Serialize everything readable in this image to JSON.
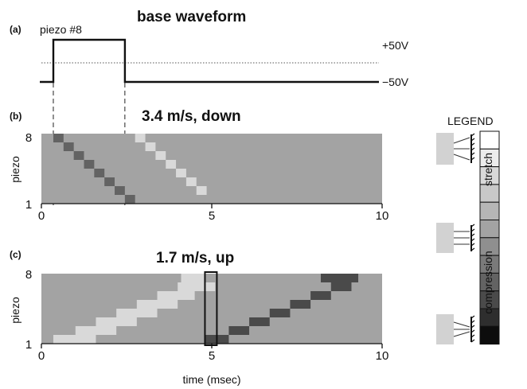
{
  "panel_a": {
    "letter": "(a)",
    "title": "base waveform",
    "signal_label": "piezo #8",
    "high_label": "+50V",
    "low_label": "−50V",
    "pulse_ms": [
      0.35,
      2.45
    ]
  },
  "panel_b": {
    "letter": "(b)",
    "title": "3.4 m/s, down",
    "ylabel": "piezo"
  },
  "panel_c": {
    "letter": "(c)",
    "title": "1.7 m/s, up",
    "ylabel": "piezo",
    "xlabel": "time (msec)"
  },
  "legend": {
    "title": "LEGEND",
    "top_label": "stretch",
    "bottom_label": "compression",
    "levels": [
      "#ffffff",
      "#ececec",
      "#d9d9d9",
      "#c8c8c8",
      "#b6b6b6",
      "#a3a3a3",
      "#8f8f8f",
      "#7a7a7a",
      "#636363",
      "#4a4a4a",
      "#2e2e2e",
      "#0d0d0d"
    ]
  },
  "chart_data": [
    {
      "type": "line",
      "title": "base waveform",
      "series": [
        {
          "name": "piezo #8",
          "x": [
            -0.1,
            0.35,
            0.35,
            2.45,
            2.45,
            10
          ],
          "y": [
            -50,
            -50,
            50,
            50,
            -50,
            -50
          ]
        }
      ],
      "yticks": [
        "+50V",
        "−50V"
      ]
    },
    {
      "type": "heatmap",
      "title": "3.4 m/s, down",
      "ylabel": "piezo",
      "xlim": [
        0,
        10
      ],
      "xticks": [
        "0",
        "5",
        "10"
      ],
      "yticks": [
        "8",
        "1"
      ],
      "background": "#a3a3a3",
      "cells": [
        {
          "piezo": 8,
          "x0": 0.35,
          "x1": 0.65,
          "color": "#636363"
        },
        {
          "piezo": 8,
          "x0": 2.75,
          "x1": 3.05,
          "color": "#d9d9d9"
        },
        {
          "piezo": 7,
          "x0": 0.65,
          "x1": 0.95,
          "color": "#636363"
        },
        {
          "piezo": 7,
          "x0": 3.05,
          "x1": 3.35,
          "color": "#d9d9d9"
        },
        {
          "piezo": 6,
          "x0": 0.95,
          "x1": 1.25,
          "color": "#636363"
        },
        {
          "piezo": 6,
          "x0": 3.35,
          "x1": 3.65,
          "color": "#d9d9d9"
        },
        {
          "piezo": 5,
          "x0": 1.25,
          "x1": 1.55,
          "color": "#636363"
        },
        {
          "piezo": 5,
          "x0": 3.65,
          "x1": 3.95,
          "color": "#d9d9d9"
        },
        {
          "piezo": 4,
          "x0": 1.55,
          "x1": 1.85,
          "color": "#636363"
        },
        {
          "piezo": 4,
          "x0": 3.95,
          "x1": 4.25,
          "color": "#d9d9d9"
        },
        {
          "piezo": 3,
          "x0": 1.85,
          "x1": 2.15,
          "color": "#636363"
        },
        {
          "piezo": 3,
          "x0": 4.25,
          "x1": 4.55,
          "color": "#d9d9d9"
        },
        {
          "piezo": 2,
          "x0": 2.15,
          "x1": 2.45,
          "color": "#636363"
        },
        {
          "piezo": 2,
          "x0": 4.55,
          "x1": 4.85,
          "color": "#d9d9d9"
        },
        {
          "piezo": 1,
          "x0": 2.45,
          "x1": 2.75,
          "color": "#636363"
        }
      ]
    },
    {
      "type": "heatmap",
      "title": "1.7 m/s, up",
      "ylabel": "piezo",
      "xlabel": "time (msec)",
      "xlim": [
        0,
        10
      ],
      "xticks": [
        "0",
        "5",
        "10"
      ],
      "yticks": [
        "8",
        "1"
      ],
      "background": "#a3a3a3",
      "highlight": {
        "x0": 4.8,
        "x1": 5.15
      },
      "cells": [
        {
          "piezo": 1,
          "x0": 0.35,
          "x1": 1.6,
          "color": "#d9d9d9"
        },
        {
          "piezo": 1,
          "x0": 4.8,
          "x1": 5.5,
          "color": "#4a4a4a"
        },
        {
          "piezo": 2,
          "x0": 1.0,
          "x1": 2.2,
          "color": "#d9d9d9"
        },
        {
          "piezo": 2,
          "x0": 5.5,
          "x1": 6.1,
          "color": "#4a4a4a"
        },
        {
          "piezo": 3,
          "x0": 1.6,
          "x1": 2.8,
          "color": "#d9d9d9"
        },
        {
          "piezo": 3,
          "x0": 6.1,
          "x1": 6.7,
          "color": "#4a4a4a"
        },
        {
          "piezo": 4,
          "x0": 2.2,
          "x1": 3.4,
          "color": "#d9d9d9"
        },
        {
          "piezo": 4,
          "x0": 6.7,
          "x1": 7.3,
          "color": "#4a4a4a"
        },
        {
          "piezo": 5,
          "x0": 2.8,
          "x1": 4.0,
          "color": "#d9d9d9"
        },
        {
          "piezo": 5,
          "x0": 7.3,
          "x1": 7.9,
          "color": "#4a4a4a"
        },
        {
          "piezo": 6,
          "x0": 3.4,
          "x1": 4.5,
          "color": "#d9d9d9"
        },
        {
          "piezo": 6,
          "x0": 7.9,
          "x1": 8.5,
          "color": "#4a4a4a"
        },
        {
          "piezo": 7,
          "x0": 4.0,
          "x1": 5.1,
          "color": "#d9d9d9"
        },
        {
          "piezo": 7,
          "x0": 8.5,
          "x1": 9.1,
          "color": "#4a4a4a"
        },
        {
          "piezo": 8,
          "x0": 4.1,
          "x1": 4.8,
          "color": "#d9d9d9"
        },
        {
          "piezo": 8,
          "x0": 8.2,
          "x1": 9.3,
          "color": "#4a4a4a"
        }
      ]
    }
  ]
}
